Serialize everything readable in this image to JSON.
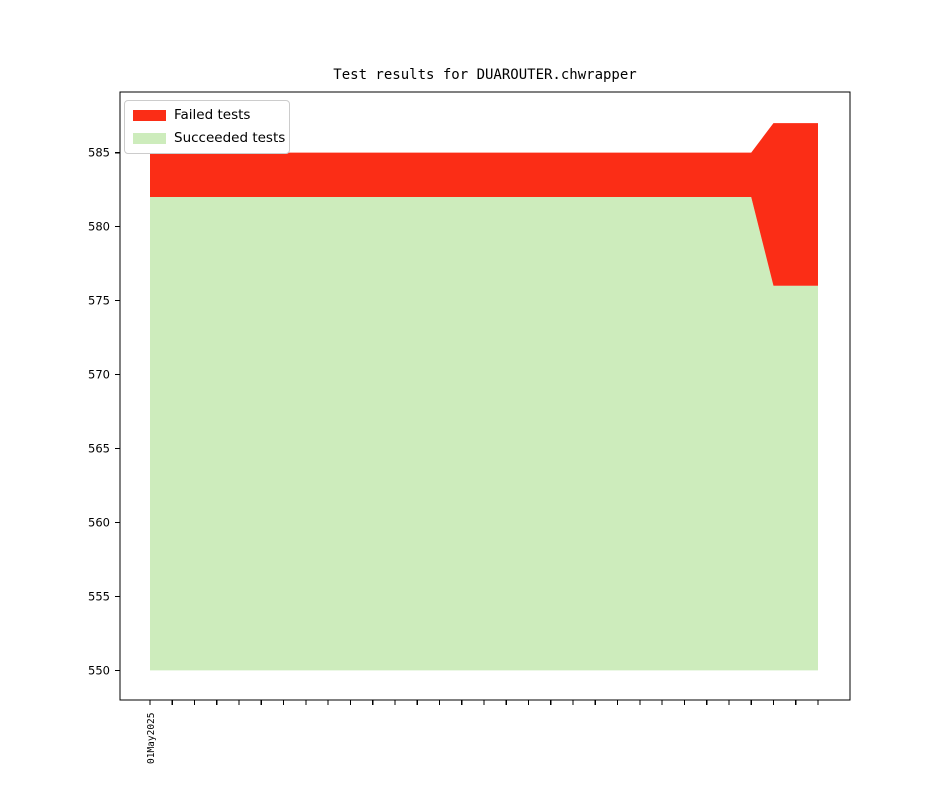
{
  "figure": {
    "background_color": "#ffffff"
  },
  "chart_data": {
    "type": "area",
    "title": "Test results for DUAROUTER.chwrapper",
    "stacked": true,
    "grid": false,
    "legend": {
      "position": "upper-left",
      "entries": [
        "Failed tests",
        "Succeeded tests"
      ]
    },
    "x_axis": {
      "tick_count": 31,
      "first_tick_label": "01May2025",
      "tick_label_rotation_deg": 90,
      "dates": "daily ticks from 01May2025 to 31May2025, only first labeled"
    },
    "y_axis": {
      "ticks": [
        550,
        555,
        560,
        565,
        570,
        575,
        580,
        585
      ],
      "ylim": [
        548.0,
        589.1
      ]
    },
    "area_baseline": 550,
    "series": [
      {
        "name": "Failed tests",
        "color": "#fb2d16",
        "values": [
          3,
          3,
          3,
          3,
          3,
          3,
          3,
          3,
          3,
          3,
          3,
          3,
          3,
          3,
          3,
          3,
          3,
          3,
          3,
          3,
          3,
          3,
          3,
          3,
          3,
          3,
          3,
          3,
          11,
          11,
          11
        ]
      },
      {
        "name": "Succeeded tests",
        "color": "#cdecbc",
        "values": [
          582,
          582,
          582,
          582,
          582,
          582,
          582,
          582,
          582,
          582,
          582,
          582,
          582,
          582,
          582,
          582,
          582,
          582,
          582,
          582,
          582,
          582,
          582,
          582,
          582,
          582,
          582,
          582,
          576,
          576,
          576
        ]
      }
    ],
    "colors": {
      "axis": "#000000",
      "tick_label": "#000000",
      "legend_border": "#cccccc"
    }
  }
}
